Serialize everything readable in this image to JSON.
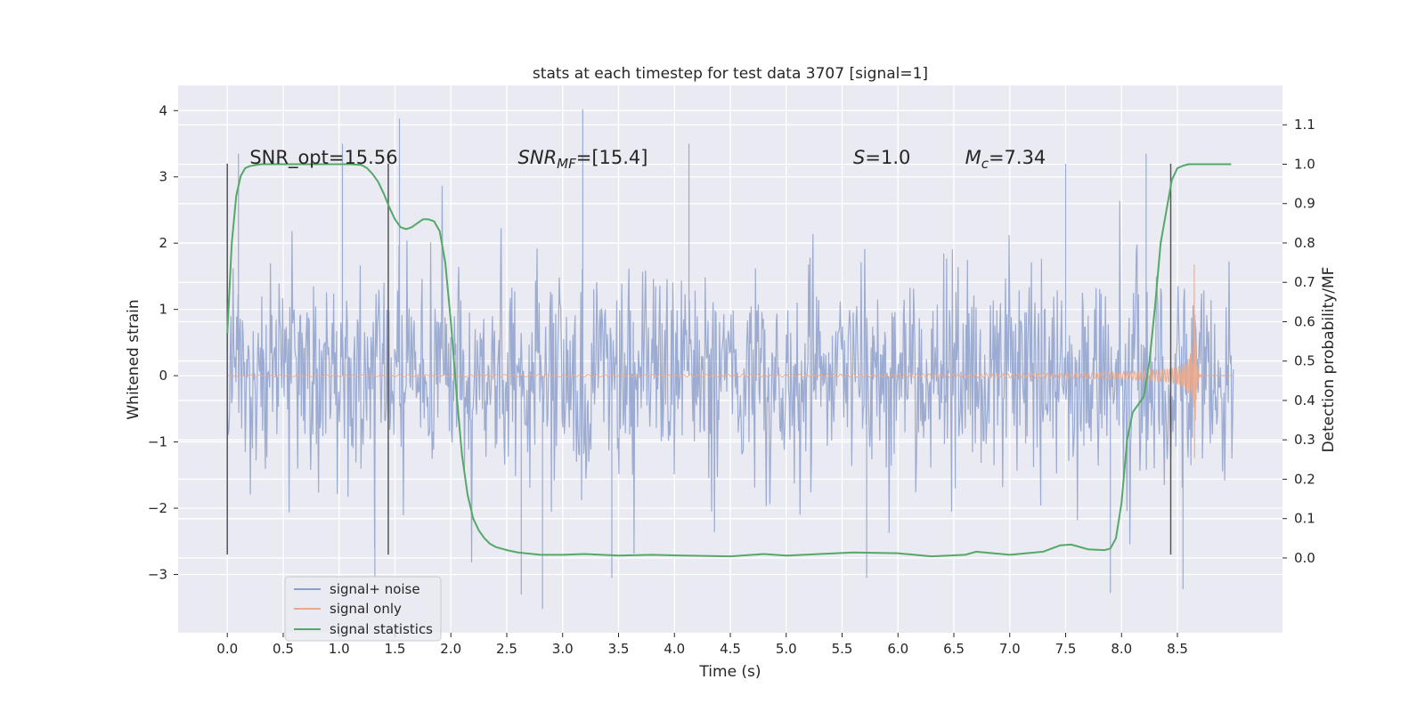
{
  "chart_data": {
    "type": "line",
    "title": "stats at each timestep for test data 3707 [signal=1]",
    "xlabel": "Time (s)",
    "ylabel": "Whitened strain",
    "y2label": "Detection probability/MF",
    "xlim": [
      -0.44,
      9.44
    ],
    "ylim": [
      -3.88,
      4.38
    ],
    "y2lim": [
      -0.19,
      1.2
    ],
    "x_ticks": [
      0.0,
      0.5,
      1.0,
      1.5,
      2.0,
      2.5,
      3.0,
      3.5,
      4.0,
      4.5,
      5.0,
      5.5,
      6.0,
      6.5,
      7.0,
      7.5,
      8.0,
      8.5
    ],
    "x_tick_labels": [
      "0.0",
      "0.5",
      "1.0",
      "1.5",
      "2.0",
      "2.5",
      "3.0",
      "3.5",
      "4.0",
      "4.5",
      "5.0",
      "5.5",
      "6.0",
      "6.5",
      "7.0",
      "7.5",
      "8.0",
      "8.5"
    ],
    "y_ticks": [
      4,
      3,
      2,
      1,
      0,
      -1,
      -2,
      -3
    ],
    "y_tick_labels": [
      "4",
      "3",
      "2",
      "1",
      "0",
      "−1",
      "−2",
      "−3"
    ],
    "y2_ticks": [
      1.1,
      1.0,
      0.9,
      0.8,
      0.7,
      0.6,
      0.5,
      0.4,
      0.3,
      0.2,
      0.1,
      0.0
    ],
    "y2_tick_labels": [
      "1.1",
      "1.0",
      "0.9",
      "0.8",
      "0.7",
      "0.6",
      "0.5",
      "0.4",
      "0.3",
      "0.2",
      "0.1",
      "0.0"
    ],
    "grid": true,
    "legend_position": "lower-left",
    "series": [
      {
        "name": "signal+ noise",
        "color": "#8da0cb",
        "axis": "left",
        "style": "noise",
        "x_range": [
          0.0,
          9.0
        ],
        "y_mean": 0.0,
        "y_sigma": 0.78,
        "notable_peaks": [
          [
            0.1,
            3.35
          ],
          [
            1.03,
            3.5
          ],
          [
            1.54,
            3.88
          ],
          [
            3.18,
            4.02
          ],
          [
            4.13,
            3.5
          ],
          [
            1.32,
            -3.05
          ],
          [
            2.82,
            -3.52
          ],
          [
            2.63,
            -3.3
          ],
          [
            5.72,
            -3.05
          ],
          [
            7.9,
            -3.28
          ],
          [
            8.55,
            -3.22
          ],
          [
            3.44,
            -3.05
          ],
          [
            8.22,
            3.35
          ],
          [
            7.5,
            3.2
          ]
        ]
      },
      {
        "name": "signal only",
        "color": "#e9a88c",
        "axis": "left",
        "style": "chirp",
        "x_range": [
          0.0,
          9.0
        ],
        "merger_time": 8.65,
        "peak_amplitude": 1.85
      },
      {
        "name": "signal statistics",
        "color": "#55a868",
        "axis": "right",
        "x": [
          0.0,
          0.04,
          0.08,
          0.12,
          0.16,
          0.2,
          0.3,
          0.5,
          0.7,
          0.9,
          1.1,
          1.2,
          1.25,
          1.3,
          1.35,
          1.4,
          1.45,
          1.5,
          1.55,
          1.6,
          1.65,
          1.7,
          1.75,
          1.8,
          1.85,
          1.9,
          1.95,
          2.0,
          2.05,
          2.1,
          2.15,
          2.2,
          2.25,
          2.3,
          2.35,
          2.4,
          2.5,
          2.6,
          2.8,
          3.0,
          3.2,
          3.5,
          3.8,
          4.1,
          4.5,
          4.8,
          5.0,
          5.3,
          5.6,
          6.0,
          6.3,
          6.6,
          6.7,
          7.0,
          7.3,
          7.45,
          7.55,
          7.7,
          7.85,
          7.9,
          7.95,
          8.0,
          8.05,
          8.1,
          8.15,
          8.2,
          8.25,
          8.3,
          8.35,
          8.4,
          8.45,
          8.5,
          8.55,
          8.6,
          8.65,
          8.8,
          8.98
        ],
        "y": [
          0.57,
          0.8,
          0.92,
          0.97,
          0.99,
          0.995,
          1.0,
          1.0,
          1.0,
          1.0,
          1.0,
          0.998,
          0.99,
          0.975,
          0.955,
          0.925,
          0.89,
          0.86,
          0.84,
          0.835,
          0.84,
          0.85,
          0.86,
          0.86,
          0.855,
          0.83,
          0.75,
          0.6,
          0.42,
          0.26,
          0.16,
          0.1,
          0.07,
          0.05,
          0.036,
          0.028,
          0.02,
          0.014,
          0.008,
          0.008,
          0.01,
          0.006,
          0.008,
          0.006,
          0.004,
          0.01,
          0.006,
          0.01,
          0.014,
          0.012,
          0.004,
          0.008,
          0.016,
          0.008,
          0.016,
          0.032,
          0.034,
          0.022,
          0.02,
          0.024,
          0.05,
          0.14,
          0.3,
          0.37,
          0.39,
          0.41,
          0.5,
          0.64,
          0.8,
          0.88,
          0.96,
          0.99,
          0.996,
          1.0,
          1.0,
          1.0,
          1.0
        ]
      }
    ],
    "vertical_lines": [
      {
        "x": 0.0,
        "y_range": [
          -2.7,
          3.2
        ],
        "color": "#555555"
      },
      {
        "x": 1.44,
        "y_range": [
          -2.7,
          3.2
        ],
        "color": "#555555"
      },
      {
        "x": 8.44,
        "y_range": [
          -2.7,
          3.2
        ],
        "color": "#555555"
      }
    ],
    "annotations": [
      {
        "x": 0.2,
        "y": 3.2,
        "text": "SNR_opt=15.56",
        "kind": "plain"
      },
      {
        "x": 2.6,
        "y": 3.2,
        "base": "SNR",
        "sub": "MF",
        "rest": "=[15.4]",
        "kind": "math"
      },
      {
        "x": 5.6,
        "y": 3.2,
        "base": "S",
        "sub": "",
        "rest": "=1.0",
        "kind": "math"
      },
      {
        "x": 6.6,
        "y": 3.2,
        "base": "M",
        "sub": "c",
        "rest": "=7.34",
        "kind": "math"
      }
    ]
  }
}
